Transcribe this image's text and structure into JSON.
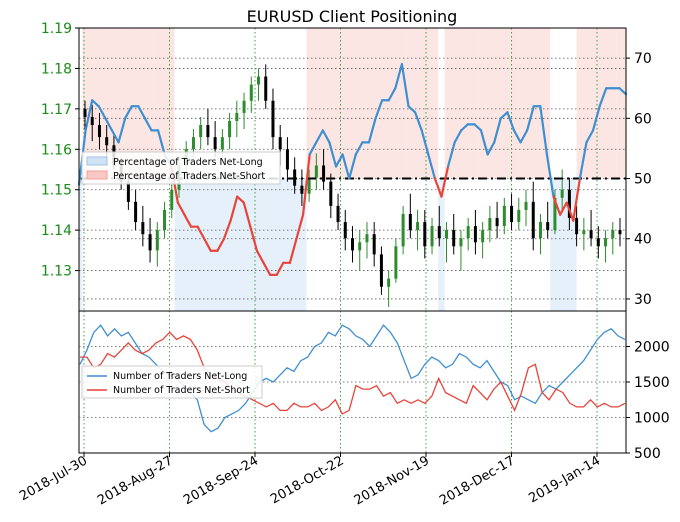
{
  "chart_data": [
    {
      "type": "line",
      "title": "EURUSD Client Positioning",
      "ylim_left": [
        1.12,
        1.19
      ],
      "yticks_left": [
        "1.13",
        "1.14",
        "1.15",
        "1.16",
        "1.17",
        "1.18",
        "1.19"
      ],
      "ylim_right": [
        28,
        75
      ],
      "yticks_right": [
        "30",
        "40",
        "50",
        "60",
        "70"
      ],
      "reference_line": 50,
      "grid": true,
      "legend_position": "upper-left",
      "colors": {
        "long_fill": "#cfe3f5",
        "short_fill": "#f8c8c4",
        "long_line": "#3f8fd0",
        "short_line": "#e8443a",
        "candle_up": "#2e8b2e",
        "candle_down": "#000000",
        "left_axis_text": "#1a8c1a",
        "grid": "#2f9a2f"
      },
      "series": [
        {
          "name": "Percentage of Traders Net-Long",
          "axis": "right",
          "values": [
            49,
            58,
            63,
            62,
            60,
            58,
            56,
            60,
            62,
            62,
            60,
            58,
            58,
            54,
            52,
            46,
            44,
            42,
            42,
            40,
            38,
            38,
            40,
            43,
            47,
            46,
            42,
            38,
            36,
            34,
            34,
            36,
            36,
            40,
            44,
            54,
            56,
            58,
            56,
            52,
            54,
            50,
            54,
            56,
            56,
            60,
            63,
            63,
            65,
            69,
            62,
            61,
            58,
            54,
            50,
            47,
            52,
            56,
            58,
            59,
            59,
            58,
            54,
            56,
            60,
            61,
            58,
            56,
            58,
            62,
            62,
            54,
            47,
            44,
            46,
            43,
            50,
            56,
            58,
            62,
            65,
            65,
            65,
            64
          ]
        },
        {
          "name": "Percentage of Traders Net-Short",
          "axis": "right",
          "values": [
            51,
            42,
            37,
            38,
            40,
            42,
            44,
            40,
            38,
            38,
            40,
            42,
            42,
            46,
            48,
            54,
            56,
            58,
            58,
            60,
            62,
            62,
            60,
            57,
            53,
            54,
            58,
            62,
            64,
            66,
            66,
            64,
            64,
            60,
            56,
            46,
            44,
            42,
            44,
            48,
            46,
            50,
            46,
            44,
            44,
            40,
            37,
            37,
            35,
            31,
            38,
            39,
            42,
            46,
            50,
            53,
            48,
            44,
            42,
            41,
            41,
            42,
            46,
            44,
            40,
            39,
            42,
            44,
            42,
            38,
            38,
            46,
            53,
            56,
            54,
            57,
            50,
            44,
            42,
            38,
            35,
            35,
            35,
            36
          ]
        }
      ],
      "candles": [
        [
          1.17,
          1.172,
          1.165,
          1.168
        ],
        [
          1.168,
          1.171,
          1.162,
          1.166
        ],
        [
          1.166,
          1.169,
          1.16,
          1.163
        ],
        [
          1.163,
          1.166,
          1.158,
          1.161
        ],
        [
          1.161,
          1.164,
          1.155,
          1.156
        ],
        [
          1.156,
          1.158,
          1.15,
          1.152
        ],
        [
          1.152,
          1.154,
          1.145,
          1.147
        ],
        [
          1.147,
          1.15,
          1.14,
          1.142
        ],
        [
          1.142,
          1.146,
          1.136,
          1.139
        ],
        [
          1.139,
          1.143,
          1.132,
          1.135
        ],
        [
          1.135,
          1.142,
          1.131,
          1.14
        ],
        [
          1.14,
          1.147,
          1.138,
          1.145
        ],
        [
          1.145,
          1.152,
          1.143,
          1.15
        ],
        [
          1.15,
          1.158,
          1.148,
          1.156
        ],
        [
          1.156,
          1.162,
          1.153,
          1.16
        ],
        [
          1.16,
          1.165,
          1.157,
          1.163
        ],
        [
          1.163,
          1.168,
          1.16,
          1.166
        ],
        [
          1.166,
          1.17,
          1.161,
          1.163
        ],
        [
          1.163,
          1.167,
          1.158,
          1.16
        ],
        [
          1.16,
          1.165,
          1.157,
          1.163
        ],
        [
          1.163,
          1.169,
          1.16,
          1.167
        ],
        [
          1.167,
          1.172,
          1.163,
          1.169
        ],
        [
          1.169,
          1.174,
          1.165,
          1.172
        ],
        [
          1.172,
          1.178,
          1.169,
          1.176
        ],
        [
          1.176,
          1.18,
          1.172,
          1.178
        ],
        [
          1.178,
          1.181,
          1.17,
          1.172
        ],
        [
          1.172,
          1.175,
          1.16,
          1.163
        ],
        [
          1.163,
          1.166,
          1.156,
          1.16
        ],
        [
          1.16,
          1.163,
          1.152,
          1.155
        ],
        [
          1.155,
          1.158,
          1.149,
          1.151
        ],
        [
          1.151,
          1.155,
          1.146,
          1.149
        ],
        [
          1.149,
          1.155,
          1.147,
          1.153
        ],
        [
          1.153,
          1.159,
          1.15,
          1.156
        ],
        [
          1.156,
          1.16,
          1.15,
          1.152
        ],
        [
          1.152,
          1.154,
          1.143,
          1.146
        ],
        [
          1.146,
          1.149,
          1.14,
          1.142
        ],
        [
          1.142,
          1.145,
          1.135,
          1.138
        ],
        [
          1.138,
          1.141,
          1.132,
          1.135
        ],
        [
          1.135,
          1.14,
          1.13,
          1.137
        ],
        [
          1.137,
          1.142,
          1.133,
          1.139
        ],
        [
          1.139,
          1.142,
          1.131,
          1.134
        ],
        [
          1.134,
          1.136,
          1.124,
          1.126
        ],
        [
          1.126,
          1.13,
          1.121,
          1.128
        ],
        [
          1.128,
          1.138,
          1.127,
          1.136
        ],
        [
          1.136,
          1.146,
          1.134,
          1.144
        ],
        [
          1.144,
          1.149,
          1.138,
          1.14
        ],
        [
          1.14,
          1.145,
          1.135,
          1.142
        ],
        [
          1.142,
          1.145,
          1.133,
          1.136
        ],
        [
          1.136,
          1.143,
          1.134,
          1.141
        ],
        [
          1.141,
          1.146,
          1.136,
          1.138
        ],
        [
          1.138,
          1.142,
          1.132,
          1.14
        ],
        [
          1.14,
          1.144,
          1.134,
          1.136
        ],
        [
          1.136,
          1.14,
          1.13,
          1.138
        ],
        [
          1.138,
          1.143,
          1.135,
          1.141
        ],
        [
          1.141,
          1.145,
          1.134,
          1.137
        ],
        [
          1.137,
          1.142,
          1.133,
          1.14
        ],
        [
          1.14,
          1.146,
          1.137,
          1.143
        ],
        [
          1.143,
          1.147,
          1.138,
          1.141
        ],
        [
          1.141,
          1.148,
          1.139,
          1.146
        ],
        [
          1.146,
          1.149,
          1.14,
          1.142
        ],
        [
          1.142,
          1.148,
          1.14,
          1.145
        ],
        [
          1.145,
          1.15,
          1.141,
          1.147
        ],
        [
          1.147,
          1.152,
          1.135,
          1.138
        ],
        [
          1.138,
          1.144,
          1.134,
          1.142
        ],
        [
          1.142,
          1.147,
          1.138,
          1.14
        ],
        [
          1.14,
          1.15,
          1.139,
          1.148
        ],
        [
          1.148,
          1.155,
          1.145,
          1.15
        ],
        [
          1.15,
          1.153,
          1.14,
          1.143
        ],
        [
          1.143,
          1.146,
          1.136,
          1.139
        ],
        [
          1.139,
          1.143,
          1.135,
          1.14
        ],
        [
          1.14,
          1.145,
          1.136,
          1.138
        ],
        [
          1.138,
          1.141,
          1.133,
          1.136
        ],
        [
          1.136,
          1.14,
          1.132,
          1.138
        ],
        [
          1.138,
          1.142,
          1.134,
          1.14
        ],
        [
          1.14,
          1.143,
          1.136,
          1.139
        ]
      ]
    },
    {
      "type": "line",
      "ylim": [
        500,
        2500
      ],
      "yticks": [
        "500",
        "1000",
        "1500",
        "2000"
      ],
      "legend_position": "left",
      "x_tick_labels": [
        "2018-Jul-30",
        "2018-Aug-27",
        "2018-Sep-24",
        "2018-Oct-22",
        "2018-Nov-19",
        "2018-Dec-17",
        "2019-Jan-14"
      ],
      "series": [
        {
          "name": "Number of Traders Net-Long",
          "values": [
            1750,
            1950,
            2200,
            2300,
            2150,
            2250,
            2150,
            2200,
            2050,
            1900,
            1850,
            1750,
            1650,
            1600,
            1550,
            1450,
            1350,
            1250,
            900,
            800,
            850,
            1000,
            1050,
            1100,
            1200,
            1350,
            1500,
            1550,
            1500,
            1600,
            1700,
            1650,
            1800,
            1850,
            2000,
            2050,
            2200,
            2150,
            2300,
            2250,
            2150,
            2100,
            2000,
            2150,
            2300,
            2200,
            2050,
            1800,
            1550,
            1600,
            1750,
            1850,
            1800,
            1700,
            1750,
            1900,
            1850,
            1750,
            1700,
            1800,
            1650,
            1500,
            1450,
            1250,
            1300,
            1250,
            1200,
            1350,
            1450,
            1400,
            1500,
            1600,
            1700,
            1800,
            1950,
            2100,
            2200,
            2250,
            2150,
            2100
          ]
        },
        {
          "name": "Number of Traders Net-Short",
          "values": [
            1850,
            1850,
            1700,
            1750,
            1900,
            1850,
            1950,
            2050,
            1950,
            1900,
            1950,
            2050,
            2100,
            2200,
            2100,
            2150,
            2100,
            1950,
            1700,
            1600,
            1550,
            1500,
            1400,
            1350,
            1300,
            1250,
            1200,
            1150,
            1200,
            1100,
            1100,
            1200,
            1150,
            1150,
            1200,
            1100,
            1150,
            1250,
            1050,
            1100,
            1450,
            1400,
            1400,
            1450,
            1300,
            1350,
            1200,
            1250,
            1200,
            1250,
            1200,
            1300,
            1550,
            1350,
            1300,
            1250,
            1200,
            1450,
            1350,
            1250,
            1400,
            1500,
            1300,
            1100,
            1350,
            1700,
            1750,
            1350,
            1250,
            1400,
            1350,
            1200,
            1150,
            1150,
            1250,
            1150,
            1200,
            1150,
            1150,
            1200
          ]
        }
      ]
    }
  ]
}
